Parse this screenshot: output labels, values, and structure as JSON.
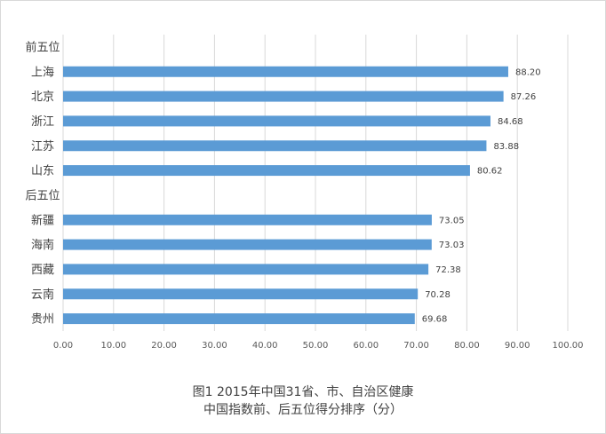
{
  "chart_data": {
    "type": "bar",
    "orientation": "horizontal",
    "categories": [
      "前五位",
      "上海",
      "北京",
      "浙江",
      "江苏",
      "山东",
      "后五位",
      "新疆",
      "海南",
      "西藏",
      "云南",
      "贵州"
    ],
    "values": [
      null,
      88.2,
      87.26,
      84.68,
      83.88,
      80.62,
      null,
      73.05,
      73.03,
      72.38,
      70.28,
      69.68
    ],
    "data_labels": [
      "",
      "88.20",
      "87.26",
      "84.68",
      "83.88",
      "80.62",
      "",
      "73.05",
      "73.03",
      "72.38",
      "70.28",
      "69.68"
    ],
    "x_ticks": [
      "0.00",
      "10.00",
      "20.00",
      "30.00",
      "40.00",
      "50.00",
      "60.00",
      "70.00",
      "80.00",
      "90.00",
      "100.00"
    ],
    "xlim": [
      0,
      100
    ],
    "grid": "vertical",
    "legend": "none",
    "bar_color": "#5b9bd5",
    "caption_line1": "图1  2015年中国31省、市、自治区健康",
    "caption_line2": "中国指数前、后五位得分排序（分）"
  }
}
